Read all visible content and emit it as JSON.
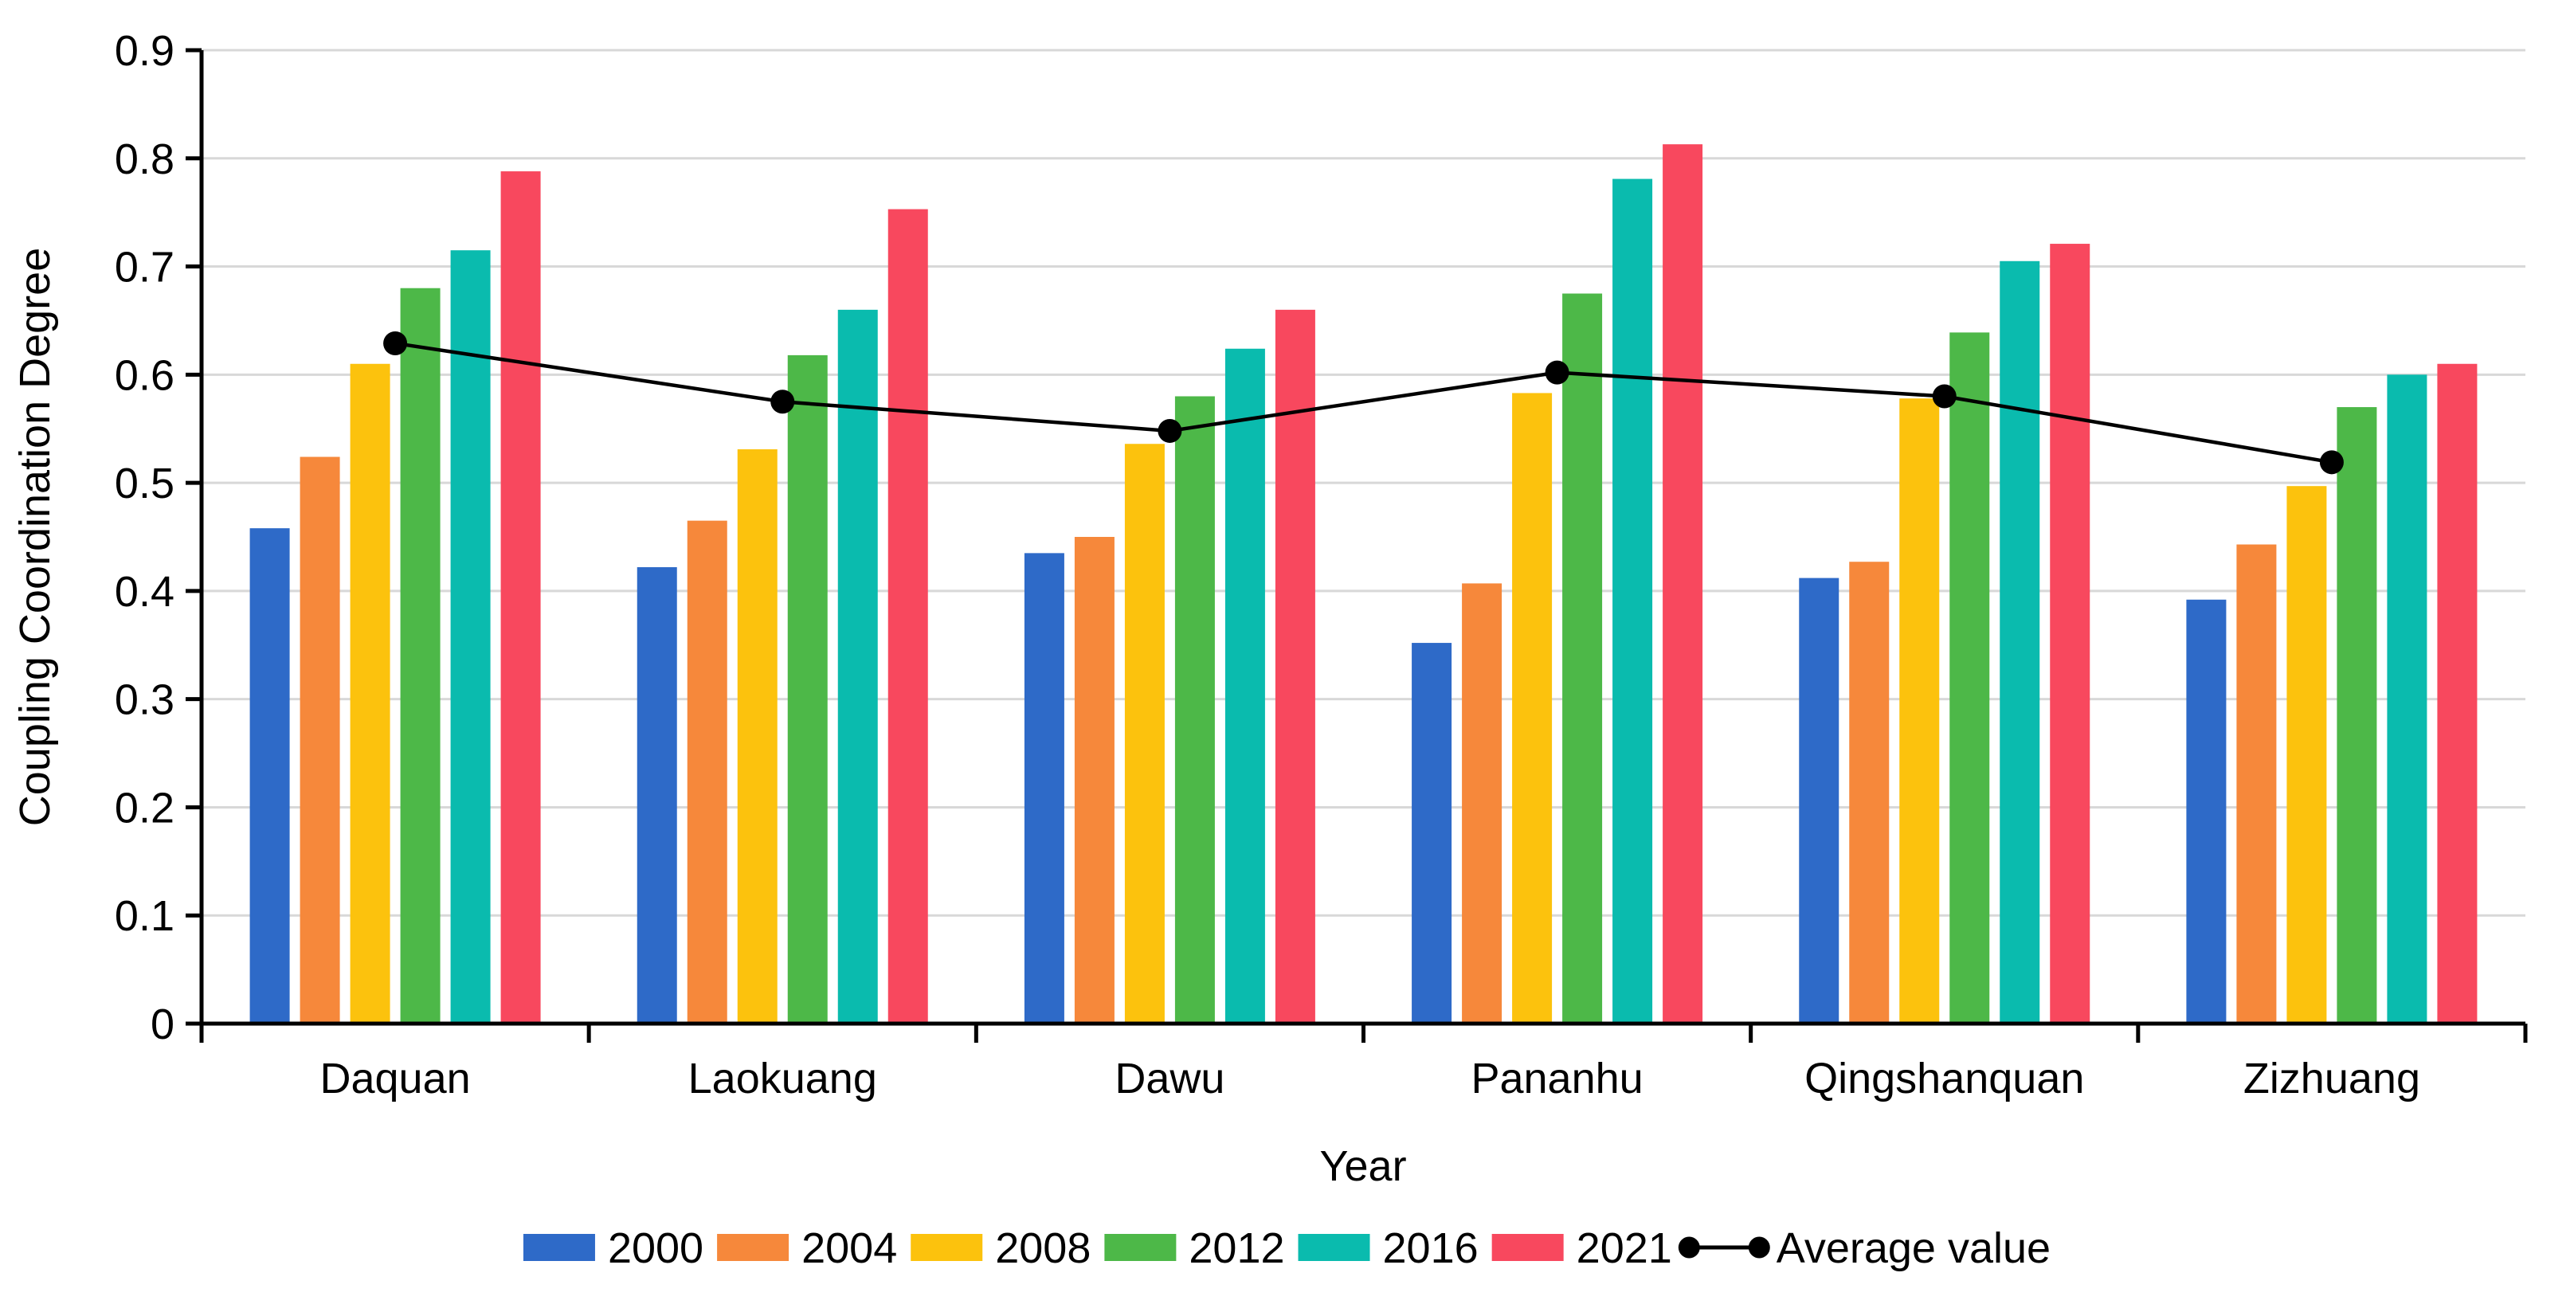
{
  "figure": {
    "background": "#ffffff",
    "text_color": "#000000",
    "grid_color": "#d8d8d8",
    "axis_color": "#000000",
    "line_color": "#000000"
  },
  "chart_data": {
    "type": "bar",
    "title": "",
    "xlabel": "Year",
    "ylabel": "Coupling Coordination Degree",
    "ylim": [
      0,
      0.9
    ],
    "ytick_step": 0.1,
    "y_tick_labels": [
      "0",
      "0.1",
      "0.2",
      "0.3",
      "0.4",
      "0.5",
      "0.6",
      "0.7",
      "0.8",
      "0.9"
    ],
    "grid": true,
    "legend_position": "bottom",
    "categories": [
      "Daquan",
      "Laokuang",
      "Dawu",
      "Pananhu",
      "Qingshanquan",
      "Zizhuang"
    ],
    "series": [
      {
        "name": "2000",
        "color": "#2e6ac8",
        "values": [
          0.458,
          0.422,
          0.435,
          0.352,
          0.412,
          0.392
        ]
      },
      {
        "name": "2004",
        "color": "#f6883b",
        "values": [
          0.524,
          0.465,
          0.45,
          0.407,
          0.427,
          0.443
        ]
      },
      {
        "name": "2008",
        "color": "#fcc20d",
        "values": [
          0.61,
          0.531,
          0.536,
          0.583,
          0.578,
          0.497
        ]
      },
      {
        "name": "2012",
        "color": "#4db848",
        "values": [
          0.68,
          0.618,
          0.58,
          0.675,
          0.639,
          0.57
        ]
      },
      {
        "name": "2016",
        "color": "#0abbae",
        "values": [
          0.715,
          0.66,
          0.624,
          0.781,
          0.705,
          0.6
        ]
      },
      {
        "name": "2021",
        "color": "#f8485e",
        "values": [
          0.788,
          0.753,
          0.66,
          0.813,
          0.721,
          0.61
        ]
      }
    ],
    "line_series": {
      "name": "Average value",
      "color": "#000000",
      "values": [
        0.629,
        0.575,
        0.548,
        0.602,
        0.58,
        0.519
      ]
    }
  }
}
